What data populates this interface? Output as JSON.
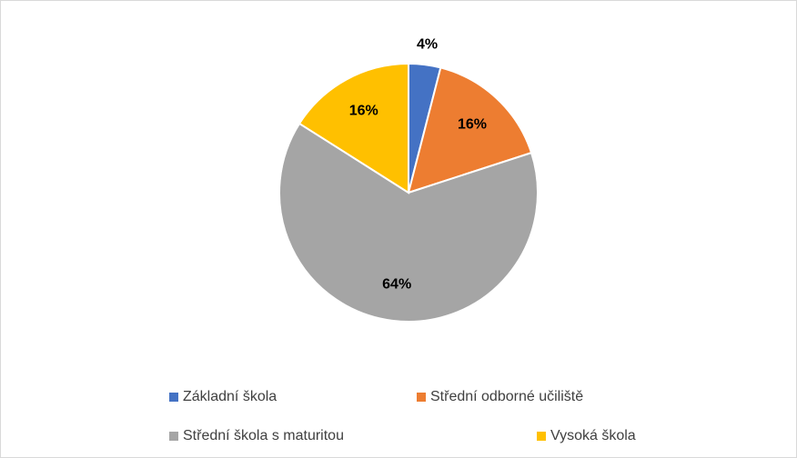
{
  "chart_data": {
    "type": "pie",
    "categories": [
      "Základní škola",
      "Střední odborné učiliště",
      "Střední škola s maturitou",
      "Vysoká škola"
    ],
    "values": [
      4,
      16,
      64,
      16
    ],
    "value_labels": [
      "4%",
      "16%",
      "64%",
      "16%"
    ],
    "colors": [
      "#4472c4",
      "#ed7d31",
      "#a5a5a5",
      "#ffc000"
    ],
    "legend": "bottom"
  }
}
